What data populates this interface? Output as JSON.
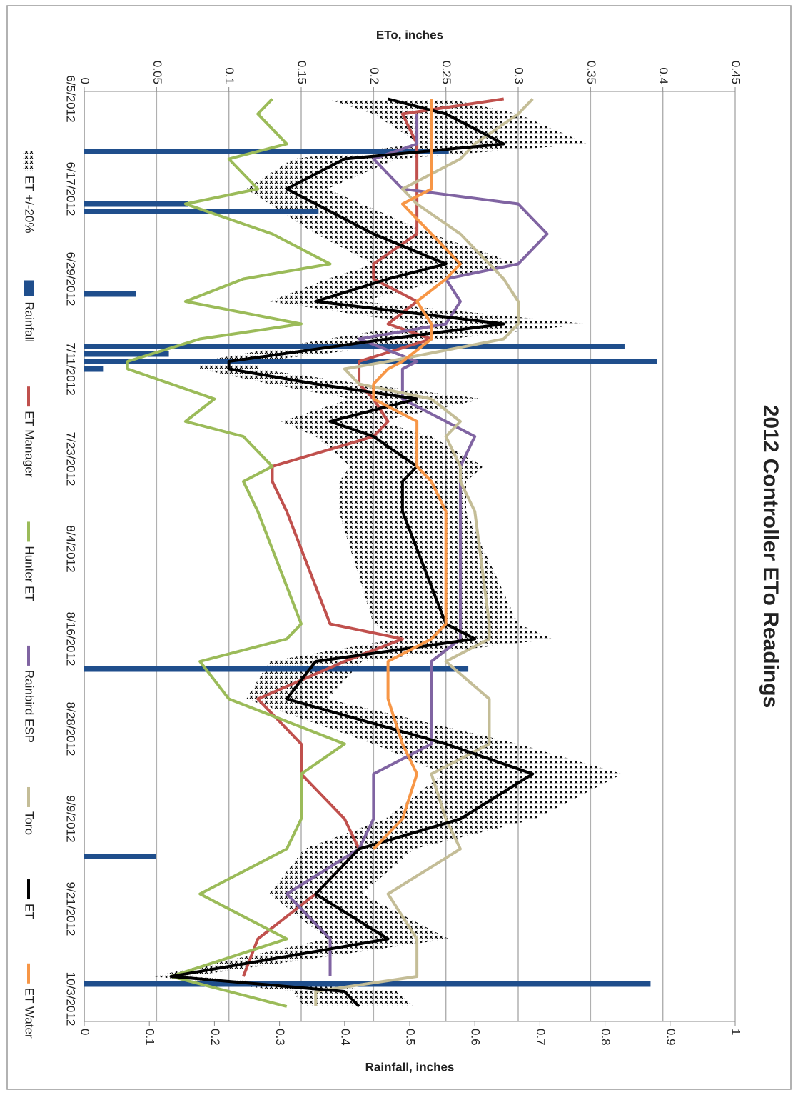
{
  "chart_data": {
    "type": "line",
    "title": "2012 Controller ETo Readings",
    "ylabel": "ETo, inches",
    "y2label": "Rainfall, inches",
    "grid": true,
    "legend": "bottom",
    "xlim": [
      "6/4/2012",
      "10/6/2012"
    ],
    "xticks": [
      "6/5/2012",
      "6/17/2012",
      "6/29/2012",
      "7/11/2012",
      "7/23/2012",
      "8/4/2012",
      "8/16/2012",
      "8/28/2012",
      "9/9/2012",
      "9/21/2012",
      "10/3/2012"
    ],
    "ylim": [
      0,
      0.45
    ],
    "yticks": [
      0,
      0.05,
      0.1,
      0.15,
      0.2,
      0.25,
      0.3,
      0.35,
      0.4,
      0.45
    ],
    "y2lim": [
      0,
      1
    ],
    "y2ticks": [
      0,
      0.1,
      0.2,
      0.3,
      0.4,
      0.5,
      0.6,
      0.7,
      0.8,
      0.9,
      1
    ],
    "x": [
      "6/5/2012",
      "6/7/2012",
      "6/11/2012",
      "6/13/2012",
      "6/17/2012",
      "6/19/2012",
      "6/23/2012",
      "6/27/2012",
      "6/29/2012",
      "7/2/2012",
      "7/5/2012",
      "7/7/2012",
      "7/10/2012",
      "7/11/2012",
      "7/13/2012",
      "7/15/2012",
      "7/18/2012",
      "7/20/2012",
      "7/24/2012",
      "7/26/2012",
      "7/30/2012",
      "8/14/2012",
      "8/16/2012",
      "8/19/2012",
      "8/24/2012",
      "8/30/2012",
      "9/3/2012",
      "9/9/2012",
      "9/13/2012",
      "9/19/2012",
      "9/25/2012",
      "9/30/2012",
      "10/2/2012",
      "10/4/2012"
    ],
    "series": [
      {
        "name": "ET +/-20%",
        "type": "band",
        "color": "#000000",
        "low": [
          0.168,
          0.2,
          0.232,
          0.144,
          0.112,
          0.128,
          0.16,
          0.2,
          0.168,
          0.128,
          0.232,
          0.168,
          0.08,
          0.08,
          0.128,
          0.184,
          0.136,
          0.16,
          0.184,
          0.176,
          0.176,
          0.2,
          0.216,
          0.128,
          0.112,
          0.2,
          0.248,
          0.208,
          0.152,
          0.128,
          0.168,
          0.048,
          0.144,
          0.152
        ],
        "high": [
          0.252,
          0.3,
          0.348,
          0.216,
          0.168,
          0.192,
          0.24,
          0.3,
          0.252,
          0.192,
          0.348,
          0.252,
          0.12,
          0.12,
          0.192,
          0.276,
          0.204,
          0.24,
          0.276,
          0.264,
          0.264,
          0.3,
          0.324,
          0.192,
          0.168,
          0.3,
          0.372,
          0.312,
          0.228,
          0.192,
          0.252,
          0.072,
          0.216,
          0.228
        ]
      },
      {
        "name": "Rainfall",
        "type": "bar",
        "axis": "y2",
        "color": "#1f4e8c",
        "x": [
          "6/12/2012",
          "6/19/2012",
          "6/20/2012",
          "7/1/2012",
          "7/8/2012",
          "7/9/2012",
          "7/10/2012",
          "7/11/2012",
          "8/20/2012",
          "9/14/2012",
          "10/1/2012"
        ],
        "values": [
          0.56,
          0.16,
          0.36,
          0.08,
          0.83,
          0.13,
          0.88,
          0.03,
          0.59,
          0.11,
          0.87
        ]
      },
      {
        "name": "ET Manager",
        "type": "line",
        "color": "#c0504d",
        "values": [
          0.29,
          0.22,
          0.23,
          0.23,
          0.23,
          0.23,
          0.23,
          0.2,
          0.2,
          0.23,
          0.21,
          0.24,
          0.19,
          0.19,
          0.19,
          0.2,
          0.21,
          0.2,
          0.13,
          0.13,
          0.14,
          0.17,
          0.22,
          0.18,
          0.12,
          0.15,
          0.15,
          0.18,
          0.19,
          0.16,
          0.12,
          0.11,
          null,
          null
        ]
      },
      {
        "name": "Hunter ET",
        "type": "line",
        "color": "#9bbb59",
        "values": [
          0.13,
          0.12,
          0.14,
          0.1,
          0.12,
          0.07,
          0.13,
          0.17,
          0.11,
          0.07,
          0.15,
          0.08,
          0.03,
          0.03,
          0.06,
          0.09,
          0.07,
          0.11,
          0.13,
          0.11,
          0.12,
          0.15,
          0.14,
          0.08,
          0.1,
          0.18,
          0.15,
          0.15,
          0.14,
          0.08,
          0.14,
          0.06,
          0.1,
          0.14
        ]
      },
      {
        "name": "Rainbird ESP",
        "type": "line",
        "color": "#8064a2",
        "values": [
          null,
          0.23,
          0.23,
          0.2,
          0.22,
          0.3,
          0.32,
          0.3,
          0.25,
          0.26,
          0.25,
          0.19,
          0.23,
          0.22,
          0.22,
          0.22,
          0.25,
          0.27,
          0.26,
          0.26,
          0.26,
          0.26,
          0.26,
          0.24,
          0.24,
          0.24,
          0.2,
          0.2,
          0.19,
          0.14,
          0.17,
          0.17,
          null,
          null
        ]
      },
      {
        "name": "Toro",
        "type": "line",
        "color": "#c4bd97",
        "values": [
          0.31,
          0.3,
          0.27,
          0.26,
          0.22,
          0.23,
          0.26,
          0.28,
          0.29,
          0.3,
          0.3,
          0.29,
          0.21,
          0.18,
          0.19,
          0.24,
          0.26,
          0.25,
          0.26,
          0.26,
          0.27,
          0.28,
          0.28,
          0.25,
          0.28,
          0.28,
          0.24,
          0.25,
          0.26,
          0.21,
          0.23,
          0.23,
          0.16,
          0.16
        ]
      },
      {
        "name": "ET",
        "type": "line",
        "color": "#000000",
        "values": [
          0.21,
          0.25,
          0.29,
          0.18,
          0.14,
          0.16,
          0.2,
          0.25,
          0.21,
          0.16,
          0.29,
          0.21,
          0.1,
          0.1,
          0.16,
          0.23,
          0.17,
          0.2,
          0.23,
          0.22,
          0.22,
          0.25,
          0.27,
          0.16,
          0.14,
          0.25,
          0.31,
          0.26,
          0.19,
          0.16,
          0.21,
          0.06,
          0.18,
          0.19
        ]
      },
      {
        "name": "ET Water",
        "type": "line",
        "color": "#f79646",
        "values": [
          0.24,
          0.24,
          0.24,
          0.24,
          0.24,
          0.22,
          0.24,
          0.26,
          0.25,
          0.23,
          0.24,
          0.24,
          0.22,
          0.21,
          0.2,
          0.2,
          0.23,
          0.23,
          0.23,
          0.24,
          0.25,
          0.25,
          0.24,
          0.21,
          0.21,
          0.22,
          0.23,
          0.22,
          0.2,
          null,
          null,
          null,
          null,
          null
        ]
      }
    ]
  }
}
